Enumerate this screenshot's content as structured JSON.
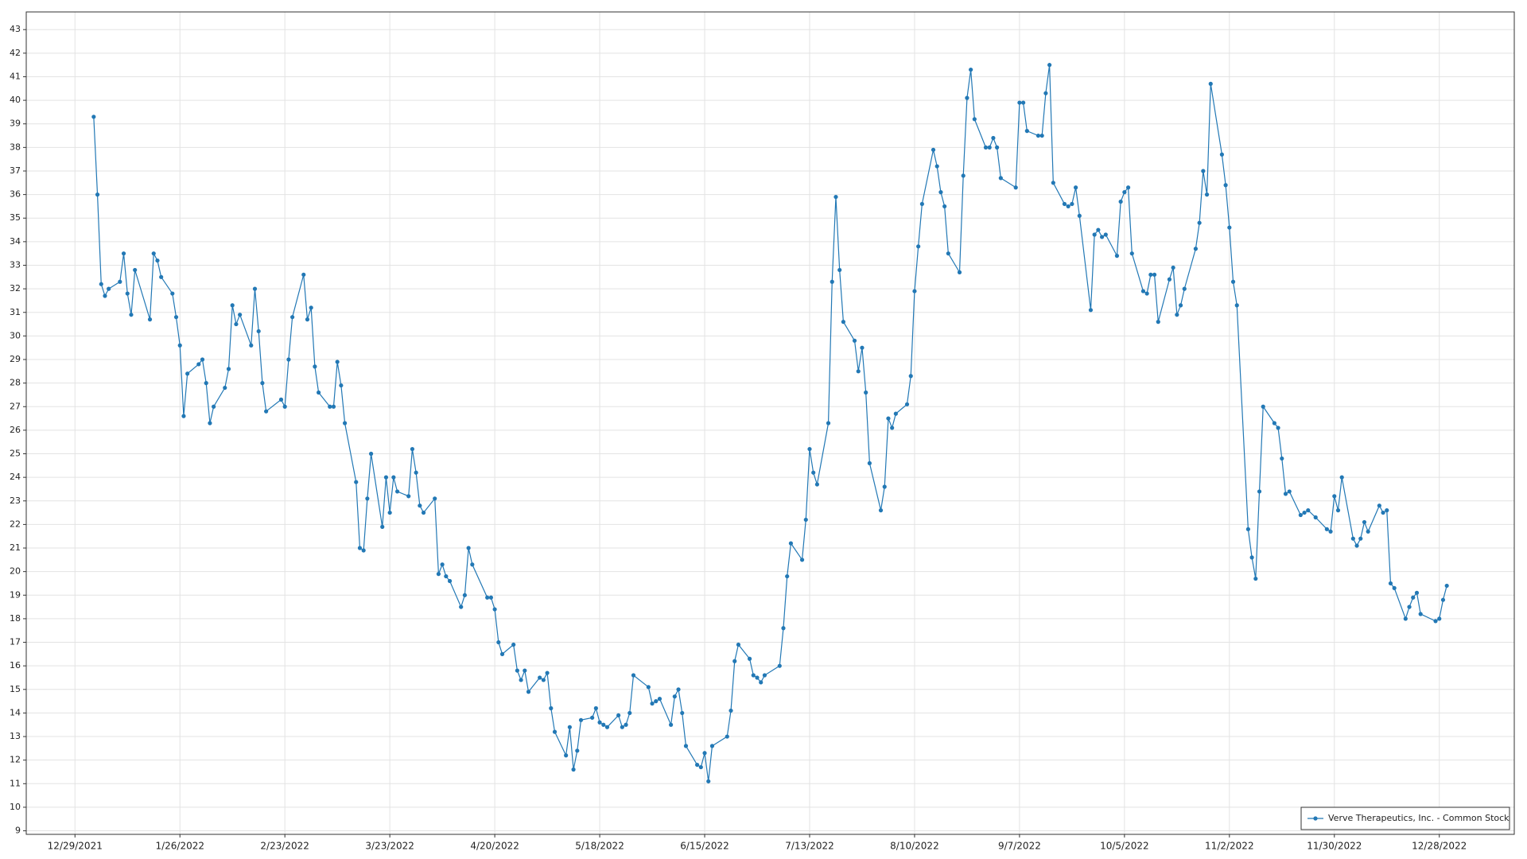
{
  "chart_data": {
    "type": "line",
    "x": [
      "1/3/2022",
      "1/4/2022",
      "1/5/2022",
      "1/6/2022",
      "1/7/2022",
      "1/10/2022",
      "1/11/2022",
      "1/12/2022",
      "1/13/2022",
      "1/14/2022",
      "1/18/2022",
      "1/19/2022",
      "1/20/2022",
      "1/21/2022",
      "1/24/2022",
      "1/25/2022",
      "1/26/2022",
      "1/27/2022",
      "1/28/2022",
      "1/31/2022",
      "2/1/2022",
      "2/2/2022",
      "2/3/2022",
      "2/4/2022",
      "2/7/2022",
      "2/8/2022",
      "2/9/2022",
      "2/10/2022",
      "2/11/2022",
      "2/14/2022",
      "2/15/2022",
      "2/16/2022",
      "2/17/2022",
      "2/18/2022",
      "2/22/2022",
      "2/23/2022",
      "2/24/2022",
      "2/25/2022",
      "2/28/2022",
      "3/1/2022",
      "3/2/2022",
      "3/3/2022",
      "3/4/2022",
      "3/7/2022",
      "3/8/2022",
      "3/9/2022",
      "3/10/2022",
      "3/11/2022",
      "3/14/2022",
      "3/15/2022",
      "3/16/2022",
      "3/17/2022",
      "3/18/2022",
      "3/21/2022",
      "3/22/2022",
      "3/23/2022",
      "3/24/2022",
      "3/25/2022",
      "3/28/2022",
      "3/29/2022",
      "3/30/2022",
      "3/31/2022",
      "4/1/2022",
      "4/4/2022",
      "4/5/2022",
      "4/6/2022",
      "4/7/2022",
      "4/8/2022",
      "4/11/2022",
      "4/12/2022",
      "4/13/2022",
      "4/14/2022",
      "4/18/2022",
      "4/19/2022",
      "4/20/2022",
      "4/21/2022",
      "4/22/2022",
      "4/25/2022",
      "4/26/2022",
      "4/27/2022",
      "4/28/2022",
      "4/29/2022",
      "5/2/2022",
      "5/3/2022",
      "5/4/2022",
      "5/5/2022",
      "5/6/2022",
      "5/9/2022",
      "5/10/2022",
      "5/11/2022",
      "5/12/2022",
      "5/13/2022",
      "5/16/2022",
      "5/17/2022",
      "5/18/2022",
      "5/19/2022",
      "5/20/2022",
      "5/23/2022",
      "5/24/2022",
      "5/25/2022",
      "5/26/2022",
      "5/27/2022",
      "5/31/2022",
      "6/1/2022",
      "6/2/2022",
      "6/3/2022",
      "6/6/2022",
      "6/7/2022",
      "6/8/2022",
      "6/9/2022",
      "6/10/2022",
      "6/13/2022",
      "6/14/2022",
      "6/15/2022",
      "6/16/2022",
      "6/17/2022",
      "6/21/2022",
      "6/22/2022",
      "6/23/2022",
      "6/24/2022",
      "6/27/2022",
      "6/28/2022",
      "6/29/2022",
      "6/30/2022",
      "7/1/2022",
      "7/5/2022",
      "7/6/2022",
      "7/7/2022",
      "7/8/2022",
      "7/11/2022",
      "7/12/2022",
      "7/13/2022",
      "7/14/2022",
      "7/15/2022",
      "7/18/2022",
      "7/19/2022",
      "7/20/2022",
      "7/21/2022",
      "7/22/2022",
      "7/25/2022",
      "7/26/2022",
      "7/27/2022",
      "7/28/2022",
      "7/29/2022",
      "8/1/2022",
      "8/2/2022",
      "8/3/2022",
      "8/4/2022",
      "8/5/2022",
      "8/8/2022",
      "8/9/2022",
      "8/10/2022",
      "8/11/2022",
      "8/12/2022",
      "8/15/2022",
      "8/16/2022",
      "8/17/2022",
      "8/18/2022",
      "8/19/2022",
      "8/22/2022",
      "8/23/2022",
      "8/24/2022",
      "8/25/2022",
      "8/26/2022",
      "8/29/2022",
      "8/30/2022",
      "8/31/2022",
      "9/1/2022",
      "9/2/2022",
      "9/6/2022",
      "9/7/2022",
      "9/8/2022",
      "9/9/2022",
      "9/12/2022",
      "9/13/2022",
      "9/14/2022",
      "9/15/2022",
      "9/16/2022",
      "9/19/2022",
      "9/20/2022",
      "9/21/2022",
      "9/22/2022",
      "9/23/2022",
      "9/26/2022",
      "9/27/2022",
      "9/28/2022",
      "9/29/2022",
      "9/30/2022",
      "10/3/2022",
      "10/4/2022",
      "10/5/2022",
      "10/6/2022",
      "10/7/2022",
      "10/10/2022",
      "10/11/2022",
      "10/12/2022",
      "10/13/2022",
      "10/14/2022",
      "10/17/2022",
      "10/18/2022",
      "10/19/2022",
      "10/20/2022",
      "10/21/2022",
      "10/24/2022",
      "10/25/2022",
      "10/26/2022",
      "10/27/2022",
      "10/28/2022",
      "10/31/2022",
      "11/1/2022",
      "11/2/2022",
      "11/3/2022",
      "11/4/2022",
      "11/7/2022",
      "11/8/2022",
      "11/9/2022",
      "11/10/2022",
      "11/11/2022",
      "11/14/2022",
      "11/15/2022",
      "11/16/2022",
      "11/17/2022",
      "11/18/2022",
      "11/21/2022",
      "11/22/2022",
      "11/23/2022",
      "11/25/2022",
      "11/28/2022",
      "11/29/2022",
      "11/30/2022",
      "12/1/2022",
      "12/2/2022",
      "12/5/2022",
      "12/6/2022",
      "12/7/2022",
      "12/8/2022",
      "12/9/2022",
      "12/12/2022",
      "12/13/2022",
      "12/14/2022",
      "12/15/2022",
      "12/16/2022",
      "12/19/2022",
      "12/20/2022",
      "12/21/2022",
      "12/22/2022",
      "12/23/2022",
      "12/27/2022",
      "12/28/2022",
      "12/29/2022",
      "12/30/2022"
    ],
    "series": [
      {
        "name": "Verve Therapeutics, Inc. - Common Stock",
        "color": "#2278b5",
        "values": [
          39.3,
          36.0,
          32.2,
          31.7,
          32.0,
          32.3,
          33.5,
          31.8,
          30.9,
          32.8,
          30.7,
          33.5,
          33.2,
          32.5,
          31.8,
          30.8,
          29.6,
          26.6,
          28.4,
          28.8,
          29.0,
          28.0,
          26.3,
          27.0,
          27.8,
          28.6,
          31.3,
          30.5,
          30.9,
          29.6,
          32.0,
          30.2,
          28.0,
          26.8,
          27.3,
          27.0,
          29.0,
          30.8,
          32.6,
          30.7,
          31.2,
          28.7,
          27.6,
          27.0,
          27.0,
          28.9,
          27.9,
          26.3,
          23.8,
          21.0,
          20.9,
          23.1,
          25.0,
          21.9,
          24.0,
          22.5,
          24.0,
          23.4,
          23.2,
          25.2,
          24.2,
          22.8,
          22.5,
          23.1,
          19.9,
          20.3,
          19.8,
          19.6,
          18.5,
          19.0,
          21.0,
          20.3,
          18.9,
          18.9,
          18.4,
          17.0,
          16.5,
          16.9,
          15.8,
          15.4,
          15.8,
          14.9,
          15.5,
          15.4,
          15.7,
          14.2,
          13.2,
          12.2,
          13.4,
          11.6,
          12.4,
          13.7,
          13.8,
          14.2,
          13.6,
          13.5,
          13.4,
          13.9,
          13.4,
          13.5,
          14.0,
          15.6,
          15.1,
          14.4,
          14.5,
          14.6,
          13.5,
          14.7,
          15.0,
          14.0,
          12.6,
          11.8,
          11.7,
          12.3,
          11.1,
          12.6,
          13.0,
          14.1,
          16.2,
          16.9,
          16.3,
          15.6,
          15.5,
          15.3,
          15.6,
          16.0,
          17.6,
          19.8,
          21.2,
          20.5,
          22.2,
          25.2,
          24.2,
          23.7,
          26.3,
          32.3,
          35.9,
          32.8,
          30.6,
          29.8,
          28.5,
          29.5,
          27.6,
          24.6,
          22.6,
          23.6,
          26.5,
          26.1,
          26.7,
          27.1,
          28.3,
          31.9,
          33.8,
          35.6,
          37.9,
          37.2,
          36.1,
          35.5,
          33.5,
          32.7,
          36.8,
          40.1,
          41.3,
          39.2,
          38.0,
          38.0,
          38.4,
          38.0,
          36.7,
          36.3,
          39.9,
          39.9,
          38.7,
          38.5,
          38.5,
          40.3,
          41.5,
          36.5,
          35.6,
          35.5,
          35.6,
          36.3,
          35.1,
          31.1,
          34.3,
          34.5,
          34.2,
          34.3,
          33.4,
          35.7,
          36.1,
          36.3,
          33.5,
          31.9,
          31.8,
          32.6,
          32.6,
          30.6,
          32.4,
          32.9,
          30.9,
          31.3,
          32.0,
          33.7,
          34.8,
          37.0,
          36.0,
          40.7,
          37.7,
          36.4,
          34.6,
          32.3,
          31.3,
          21.8,
          20.6,
          19.7,
          23.4,
          27.0,
          26.3,
          26.1,
          24.8,
          23.3,
          23.4,
          22.4,
          22.5,
          22.6,
          22.3,
          21.8,
          21.7,
          23.2,
          22.6,
          24.0,
          21.4,
          21.1,
          21.4,
          22.1,
          21.7,
          22.8,
          22.5,
          22.6,
          19.5,
          19.3,
          18.0,
          18.5,
          18.9,
          19.1,
          18.2,
          17.9,
          18.0,
          18.8,
          19.4
        ]
      }
    ],
    "xlim": [
      "12/16/2021",
      "1/17/2023"
    ],
    "xticks": [
      "12/29/2021",
      "1/26/2022",
      "2/23/2022",
      "3/23/2022",
      "4/20/2022",
      "5/18/2022",
      "6/15/2022",
      "7/13/2022",
      "8/10/2022",
      "9/7/2022",
      "10/5/2022",
      "11/2/2022",
      "11/30/2022",
      "12/28/2022"
    ],
    "ylim": [
      8.85,
      43.75
    ],
    "yticks": [
      9,
      10,
      11,
      12,
      13,
      14,
      15,
      16,
      17,
      18,
      19,
      20,
      21,
      22,
      23,
      24,
      25,
      26,
      27,
      28,
      29,
      30,
      31,
      32,
      33,
      34,
      35,
      36,
      37,
      38,
      39,
      40,
      41,
      42,
      43
    ],
    "grid": true,
    "legend": "lower right"
  }
}
